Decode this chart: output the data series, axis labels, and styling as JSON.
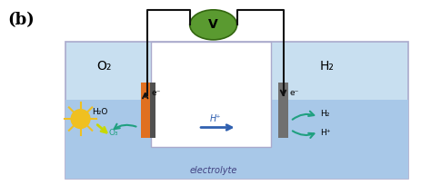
{
  "bg_color": "#ffffff",
  "label_b": "(b)",
  "tank_color": "#c8dff0",
  "tank_outline": "#aaaacc",
  "water_color": "#a8c8e8",
  "inner_bg": "#ffffff",
  "electrode_left_color": "#e07020",
  "electrode_right_color": "#707070",
  "wire_color": "#111111",
  "voltmeter_color": "#5a9a30",
  "voltmeter_text": "V",
  "arrow_color": "#3060b0",
  "teal_color": "#20a080",
  "sun_color": "#f0c020",
  "lightning_color": "#d0e020",
  "text_O2": "O₂",
  "text_H2": "H₂",
  "text_Hp": "H⁺",
  "text_electrolyte": "electrolyte",
  "text_H2O": "H₂O",
  "text_O3": "O₃",
  "text_Ha": "H₂",
  "text_Hp2": "H⁺",
  "text_eminus_up": "e⁻",
  "text_eminus_down": "e⁻"
}
